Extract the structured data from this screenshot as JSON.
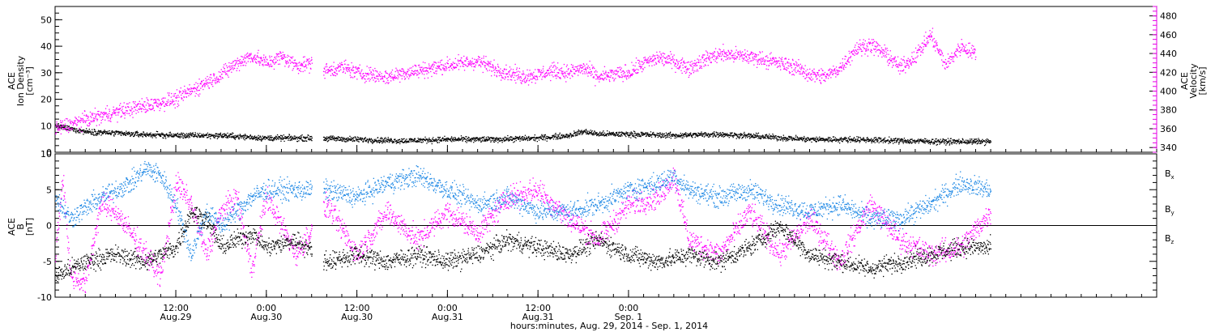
{
  "chart_data": [
    {
      "type": "scatter",
      "panel": "top",
      "ylabel_lines": [
        "ACE",
        "Ion Density",
        "[cm⁻³]"
      ],
      "ylim": [
        0,
        55
      ],
      "yticks": [
        0,
        10,
        20,
        30,
        40,
        50
      ],
      "y2label_lines": [
        "ACE",
        "Velocity",
        "[km/s]"
      ],
      "y2lim": [
        335,
        490
      ],
      "y2ticks": [
        340,
        360,
        380,
        400,
        420,
        440,
        460,
        480
      ],
      "x_range_hours": [
        -16,
        130
      ],
      "data_gaps_hours": [
        [
          18,
          19.5
        ]
      ],
      "series": [
        {
          "name": "Ion Density",
          "color": "#000000",
          "axis": "left",
          "points": [
            [
              -16,
              10
            ],
            [
              -12,
              8
            ],
            [
              -6,
              7
            ],
            [
              0,
              6.5
            ],
            [
              6,
              6.5
            ],
            [
              12,
              5.5
            ],
            [
              18,
              5.5
            ],
            [
              24,
              5
            ],
            [
              30,
              4.5
            ],
            [
              36,
              5
            ],
            [
              42,
              5
            ],
            [
              48,
              5.5
            ],
            [
              52,
              6.5
            ],
            [
              54,
              8
            ],
            [
              56,
              7
            ],
            [
              60,
              7
            ],
            [
              66,
              6.5
            ],
            [
              72,
              7
            ],
            [
              78,
              6
            ],
            [
              84,
              5
            ],
            [
              90,
              5
            ],
            [
              96,
              4.5
            ],
            [
              102,
              4.2
            ],
            [
              108,
              4.2
            ]
          ]
        },
        {
          "name": "Velocity",
          "color": "#ff00ff",
          "axis": "right",
          "points": [
            [
              -16,
              360
            ],
            [
              -12,
              370
            ],
            [
              -8,
              378
            ],
            [
              -4,
              385
            ],
            [
              0,
              392
            ],
            [
              4,
              410
            ],
            [
              6,
              418
            ],
            [
              8,
              430
            ],
            [
              10,
              438
            ],
            [
              12,
              430
            ],
            [
              14,
              437
            ],
            [
              16,
              428
            ],
            [
              18,
              430
            ],
            [
              20,
              422
            ],
            [
              22,
              426
            ],
            [
              24,
              420
            ],
            [
              26,
              418
            ],
            [
              28,
              415
            ],
            [
              30,
              420
            ],
            [
              32,
              422
            ],
            [
              36,
              428
            ],
            [
              40,
              432
            ],
            [
              42,
              425
            ],
            [
              44,
              420
            ],
            [
              46,
              416
            ],
            [
              48,
              418
            ],
            [
              50,
              422
            ],
            [
              52,
              420
            ],
            [
              54,
              425
            ],
            [
              56,
              415
            ],
            [
              58,
              418
            ],
            [
              60,
              420
            ],
            [
              62,
              430
            ],
            [
              64,
              436
            ],
            [
              66,
              432
            ],
            [
              68,
              425
            ],
            [
              70,
              434
            ],
            [
              72,
              440
            ],
            [
              76,
              437
            ],
            [
              78,
              434
            ],
            [
              80,
              430
            ],
            [
              82,
              426
            ],
            [
              84,
              418
            ],
            [
              86,
              416
            ],
            [
              88,
              425
            ],
            [
              90,
              445
            ],
            [
              92,
              450
            ],
            [
              94,
              440
            ],
            [
              96,
              425
            ],
            [
              98,
              438
            ],
            [
              100,
              460
            ],
            [
              102,
              428
            ],
            [
              104,
              448
            ],
            [
              106,
              440
            ]
          ]
        }
      ]
    },
    {
      "type": "scatter",
      "panel": "bottom",
      "ylabel_lines": [
        "ACE",
        "B",
        "[nT]"
      ],
      "ylim": [
        -10,
        10
      ],
      "yticks": [
        -10,
        -5,
        0,
        5,
        10
      ],
      "zero_line": true,
      "x_range_hours": [
        -16,
        130
      ],
      "data_gaps_hours": [
        [
          18,
          19.5
        ]
      ],
      "xticks": [
        {
          "hour": 0,
          "label1": "12:00",
          "label2": "Aug.29"
        },
        {
          "hour": 12,
          "label1": "0:00",
          "label2": "Aug.30"
        },
        {
          "hour": 24,
          "label1": "12:00",
          "label2": "Aug.30"
        },
        {
          "hour": 36,
          "label1": "0:00",
          "label2": "Aug.31"
        },
        {
          "hour": 48,
          "label1": "12:00",
          "label2": "Aug.31"
        },
        {
          "hour": 60,
          "label1": "0:00",
          "label2": "Sep. 1"
        }
      ],
      "xlabel": "hours:minutes, Aug. 29, 2014 - Sep.  1, 2014",
      "legend_placement": "right",
      "series": [
        {
          "name": "B",
          "subscript": "x",
          "color": "#000000",
          "points": [
            [
              -16,
              -7
            ],
            [
              -12,
              -5
            ],
            [
              -8,
              -4
            ],
            [
              -4,
              -5
            ],
            [
              0,
              -3
            ],
            [
              2,
              2
            ],
            [
              4,
              1
            ],
            [
              6,
              -3
            ],
            [
              8,
              -2
            ],
            [
              10,
              -1
            ],
            [
              12,
              -3
            ],
            [
              16,
              -2
            ],
            [
              20,
              -5
            ],
            [
              24,
              -4
            ],
            [
              28,
              -5
            ],
            [
              32,
              -4
            ],
            [
              36,
              -5
            ],
            [
              40,
              -4
            ],
            [
              44,
              -2
            ],
            [
              48,
              -3
            ],
            [
              52,
              -4
            ],
            [
              56,
              -2
            ],
            [
              60,
              -4
            ],
            [
              64,
              -5
            ],
            [
              68,
              -4
            ],
            [
              72,
              -5
            ],
            [
              76,
              -3
            ],
            [
              80,
              0
            ],
            [
              84,
              -4
            ],
            [
              88,
              -5
            ],
            [
              92,
              -6
            ],
            [
              96,
              -5
            ],
            [
              100,
              -4
            ],
            [
              104,
              -3
            ],
            [
              108,
              -3
            ]
          ]
        },
        {
          "name": "B",
          "subscript": "y",
          "color": "#1e88e5",
          "points": [
            [
              -16,
              4
            ],
            [
              -14,
              1
            ],
            [
              -10,
              4
            ],
            [
              -6,
              6
            ],
            [
              -4,
              8
            ],
            [
              -2,
              7
            ],
            [
              0,
              3
            ],
            [
              2,
              -4
            ],
            [
              4,
              2
            ],
            [
              6,
              0
            ],
            [
              8,
              2
            ],
            [
              10,
              4
            ],
            [
              12,
              5
            ],
            [
              20,
              5
            ],
            [
              24,
              4
            ],
            [
              28,
              6
            ],
            [
              32,
              7
            ],
            [
              36,
              5
            ],
            [
              40,
              3
            ],
            [
              44,
              4
            ],
            [
              48,
              2
            ],
            [
              52,
              2
            ],
            [
              56,
              3
            ],
            [
              60,
              5
            ],
            [
              64,
              6
            ],
            [
              66,
              7
            ],
            [
              68,
              5
            ],
            [
              72,
              4
            ],
            [
              76,
              5
            ],
            [
              80,
              3
            ],
            [
              84,
              2
            ],
            [
              88,
              3
            ],
            [
              92,
              1
            ],
            [
              96,
              1
            ],
            [
              100,
              3
            ],
            [
              104,
              6
            ],
            [
              108,
              5
            ]
          ]
        },
        {
          "name": "B",
          "subscript": "z",
          "color": "#ff00ff",
          "points": [
            [
              -16,
              -4
            ],
            [
              -15,
              7
            ],
            [
              -14,
              -7
            ],
            [
              -12,
              -8
            ],
            [
              -10,
              3
            ],
            [
              -8,
              2
            ],
            [
              -4,
              -4
            ],
            [
              -2,
              -7
            ],
            [
              0,
              6
            ],
            [
              2,
              3
            ],
            [
              4,
              -4
            ],
            [
              6,
              2
            ],
            [
              8,
              4
            ],
            [
              10,
              -6
            ],
            [
              12,
              4
            ],
            [
              16,
              -4
            ],
            [
              20,
              3
            ],
            [
              24,
              -4
            ],
            [
              28,
              2
            ],
            [
              32,
              -2
            ],
            [
              36,
              2
            ],
            [
              40,
              -1
            ],
            [
              44,
              4
            ],
            [
              48,
              5
            ],
            [
              52,
              1
            ],
            [
              56,
              -2
            ],
            [
              60,
              3
            ],
            [
              64,
              4
            ],
            [
              66,
              7
            ],
            [
              68,
              -2
            ],
            [
              72,
              -4
            ],
            [
              76,
              2
            ],
            [
              80,
              -4
            ],
            [
              84,
              1
            ],
            [
              88,
              -5
            ],
            [
              92,
              3
            ],
            [
              96,
              -2
            ],
            [
              100,
              -4
            ],
            [
              104,
              -3
            ],
            [
              108,
              2
            ]
          ]
        }
      ]
    }
  ]
}
